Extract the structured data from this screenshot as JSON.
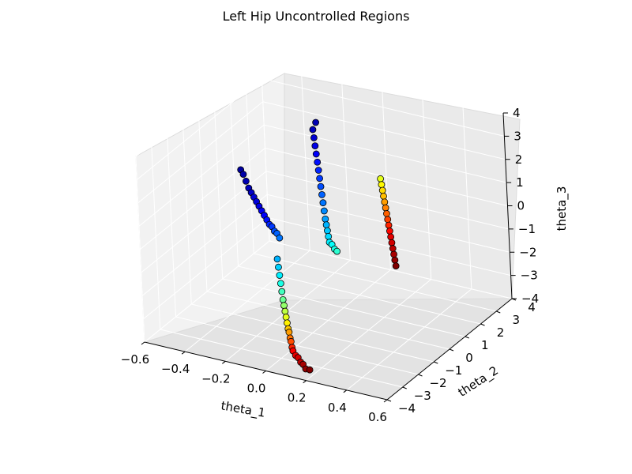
{
  "chart_data": {
    "type": "scatter",
    "projection": "3d",
    "title": "Left Hip Uncontrolled Regions",
    "xlabel": "theta_1",
    "ylabel": "theta_2",
    "zlabel": "theta_3",
    "xlim": [
      -0.6,
      0.6
    ],
    "ylim": [
      -4,
      4
    ],
    "zlim": [
      -4,
      4
    ],
    "x_ticks": [
      "−0.6",
      "−0.4",
      "−0.2",
      "0.0",
      "0.2",
      "0.4",
      "0.6"
    ],
    "y_ticks": [
      "−4",
      "−3",
      "−2",
      "−1",
      "0",
      "1",
      "2",
      "3",
      "4"
    ],
    "z_ticks": [
      "−4",
      "−3",
      "−2",
      "−1",
      "0",
      "1",
      "2",
      "3",
      "4"
    ],
    "grid": true,
    "colormap": "jet",
    "marker_edge_color": "#000000",
    "pane_color": "#f2f2f2",
    "series": [
      {
        "x": [
          -0.3,
          -0.3,
          -0.28,
          -0.26,
          -0.24,
          -0.22,
          -0.2,
          -0.18,
          -0.16,
          -0.14,
          -0.12,
          -0.1,
          -0.08,
          -0.06,
          -0.04,
          -0.02,
          0.0,
          0.02,
          0.04,
          0.06
        ],
        "y": [
          3.5,
          3.3,
          3.1,
          2.9,
          2.7,
          2.5,
          2.3,
          2.1,
          1.9,
          1.7,
          1.5,
          1.3,
          1.1,
          0.9,
          0.7,
          0.5,
          0.3,
          0.2,
          0.1,
          0.0
        ],
        "z": [
          2.0,
          1.8,
          1.6,
          1.4,
          1.2,
          1.0,
          0.8,
          0.6,
          0.4,
          0.2,
          0.0,
          -0.2,
          -0.4,
          -0.5,
          -0.6,
          -0.7,
          -0.8,
          -0.8,
          -0.9,
          -0.9
        ],
        "c": [
          0.05,
          0.06,
          0.08,
          0.1,
          0.12,
          0.14,
          0.16,
          0.18,
          0.2,
          0.22,
          0.24,
          0.26,
          0.28,
          0.3,
          0.32,
          0.34,
          0.36,
          0.38,
          0.4,
          0.42
        ]
      },
      {
        "x": [
          -0.5,
          -0.48,
          -0.46,
          -0.44,
          -0.42,
          -0.4,
          -0.38,
          -0.36,
          -0.34,
          -0.32,
          -0.3,
          -0.28,
          -0.26,
          -0.24,
          -0.22,
          -0.2
        ],
        "y": [
          1.2,
          1.1,
          1.0,
          0.9,
          0.8,
          0.7,
          0.6,
          0.5,
          0.4,
          0.3,
          0.2,
          0.1,
          0.0,
          -0.1,
          -0.2,
          -0.3
        ],
        "z": [
          0.8,
          0.7,
          0.5,
          0.3,
          0.2,
          0.1,
          0.0,
          -0.1,
          -0.2,
          -0.3,
          -0.4,
          -0.5,
          -0.5,
          -0.6,
          -0.6,
          -0.7
        ],
        "c": [
          0.03,
          0.04,
          0.05,
          0.06,
          0.07,
          0.08,
          0.09,
          0.1,
          0.11,
          0.12,
          0.14,
          0.16,
          0.18,
          0.2,
          0.22,
          0.24
        ]
      },
      {
        "x": [
          0.1,
          0.12,
          0.14,
          0.16,
          0.18,
          0.2,
          0.22,
          0.24,
          0.26,
          0.28,
          0.3,
          0.32,
          0.34,
          0.36,
          0.38,
          0.4
        ],
        "y": [
          2.4,
          2.2,
          2.0,
          1.8,
          1.6,
          1.4,
          1.2,
          1.0,
          0.8,
          0.6,
          0.4,
          0.2,
          0.0,
          -0.2,
          -0.4,
          -0.6
        ],
        "z": [
          1.0,
          0.9,
          0.8,
          0.7,
          0.6,
          0.5,
          0.4,
          0.3,
          0.2,
          0.1,
          0.0,
          -0.1,
          -0.2,
          -0.3,
          -0.4,
          -0.5
        ],
        "c": [
          0.6,
          0.63,
          0.66,
          0.69,
          0.72,
          0.75,
          0.78,
          0.81,
          0.84,
          0.87,
          0.9,
          0.92,
          0.94,
          0.96,
          0.98,
          1.0
        ]
      },
      {
        "x": [
          -0.2,
          -0.18,
          -0.16,
          -0.14,
          -0.12,
          -0.1,
          -0.08,
          -0.06,
          -0.04,
          -0.02,
          0.0,
          0.02,
          0.04,
          0.06,
          0.08,
          0.1,
          0.12,
          0.14,
          0.16,
          0.18,
          0.2,
          0.22
        ],
        "y": [
          -0.5,
          -0.7,
          -0.9,
          -1.1,
          -1.3,
          -1.5,
          -1.7,
          -1.9,
          -2.1,
          -2.3,
          -2.5,
          -2.7,
          -2.9,
          -3.1,
          -3.3,
          -3.5,
          -3.6,
          -3.7,
          -3.8,
          -3.9,
          -4.0,
          -4.0
        ],
        "z": [
          -1.5,
          -1.7,
          -1.9,
          -2.1,
          -2.3,
          -2.5,
          -2.6,
          -2.7,
          -2.8,
          -2.9,
          -3.0,
          -3.0,
          -3.1,
          -3.1,
          -3.2,
          -3.2,
          -3.3,
          -3.3,
          -3.4,
          -3.4,
          -3.5,
          -3.5
        ],
        "c": [
          0.3,
          0.33,
          0.36,
          0.4,
          0.44,
          0.48,
          0.52,
          0.56,
          0.6,
          0.64,
          0.68,
          0.72,
          0.76,
          0.8,
          0.84,
          0.88,
          0.9,
          0.92,
          0.94,
          0.96,
          0.98,
          1.0
        ]
      }
    ]
  }
}
